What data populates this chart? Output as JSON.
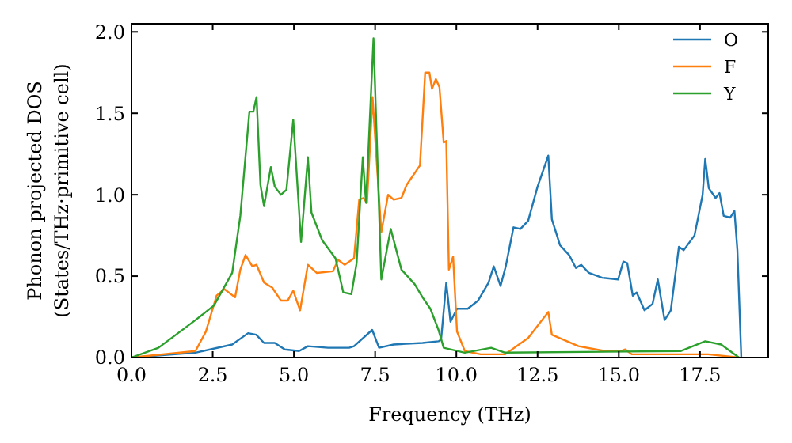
{
  "chart_data": {
    "type": "line",
    "xlabel": "Frequency (THz)",
    "ylabel": "Phonon projected DOS\n(States/THz·primitive cell)",
    "xlim": [
      0,
      19.6
    ],
    "ylim": [
      0,
      2.05
    ],
    "xticks": [
      {
        "value": 0,
        "label": "0.0"
      },
      {
        "value": 2.5,
        "label": "2.5"
      },
      {
        "value": 5,
        "label": "5.0"
      },
      {
        "value": 7.5,
        "label": "7.5"
      },
      {
        "value": 10,
        "label": "10.0"
      },
      {
        "value": 12.5,
        "label": "12.5"
      },
      {
        "value": 15,
        "label": "15.0"
      },
      {
        "value": 17.5,
        "label": "17.5"
      }
    ],
    "yticks": [
      {
        "value": 0,
        "label": "0.0"
      },
      {
        "value": 0.5,
        "label": "0.5"
      },
      {
        "value": 1,
        "label": "1.0"
      },
      {
        "value": 1.5,
        "label": "1.5"
      },
      {
        "value": 2,
        "label": "2.0"
      }
    ],
    "grid": false,
    "legend": "top right",
    "line_style": "solid",
    "marker": "none",
    "series": [
      {
        "name": "O",
        "color": "#1f77b4",
        "x": [
          0,
          1.97,
          3.1,
          3.59,
          3.84,
          4.08,
          4.41,
          4.72,
          5.16,
          5.43,
          6.05,
          6.7,
          6.85,
          7.41,
          7.62,
          8.07,
          8.96,
          9.45,
          9.53,
          9.69,
          9.82,
          10.02,
          10.35,
          10.67,
          10.99,
          11.15,
          11.36,
          11.52,
          11.76,
          11.97,
          12.21,
          12.5,
          12.83,
          12.94,
          13.19,
          13.47,
          13.68,
          13.84,
          14.08,
          14.49,
          14.98,
          15.14,
          15.26,
          15.43,
          15.55,
          15.79,
          16.04,
          16.2,
          16.41,
          16.6,
          16.85,
          17.0,
          17.33,
          17.58,
          17.66,
          17.77,
          17.98,
          18.1,
          18.23,
          18.43,
          18.56,
          18.65,
          18.77
        ],
        "values": [
          0,
          0.03,
          0.08,
          0.15,
          0.14,
          0.09,
          0.09,
          0.05,
          0.04,
          0.07,
          0.06,
          0.06,
          0.07,
          0.17,
          0.06,
          0.08,
          0.09,
          0.1,
          0.11,
          0.46,
          0.22,
          0.3,
          0.3,
          0.35,
          0.46,
          0.56,
          0.44,
          0.56,
          0.8,
          0.79,
          0.84,
          1.05,
          1.24,
          0.85,
          0.69,
          0.63,
          0.55,
          0.57,
          0.52,
          0.49,
          0.48,
          0.59,
          0.58,
          0.38,
          0.4,
          0.29,
          0.33,
          0.48,
          0.23,
          0.29,
          0.68,
          0.66,
          0.75,
          1.0,
          1.22,
          1.04,
          0.98,
          1.01,
          0.87,
          0.86,
          0.9,
          0.66,
          0
        ]
      },
      {
        "name": "F",
        "color": "#ff7f0e",
        "x": [
          0,
          1.97,
          2.29,
          2.62,
          2.86,
          3.19,
          3.35,
          3.51,
          3.72,
          3.85,
          4.08,
          4.33,
          4.6,
          4.81,
          4.98,
          5.19,
          5.43,
          5.7,
          6.2,
          6.36,
          6.56,
          6.85,
          7.01,
          7.14,
          7.25,
          7.42,
          7.69,
          7.9,
          8.07,
          8.31,
          8.47,
          8.88,
          9.04,
          9.17,
          9.25,
          9.37,
          9.48,
          9.61,
          9.69,
          9.77,
          9.9,
          10.02,
          10.26,
          10.75,
          11.5,
          12.21,
          12.83,
          12.94,
          13.76,
          14.57,
          15.06,
          15.2,
          15.4,
          17.75,
          18.7
        ],
        "values": [
          0,
          0.04,
          0.16,
          0.38,
          0.42,
          0.37,
          0.54,
          0.63,
          0.56,
          0.57,
          0.46,
          0.43,
          0.35,
          0.35,
          0.41,
          0.29,
          0.57,
          0.52,
          0.53,
          0.6,
          0.57,
          0.61,
          0.97,
          0.98,
          0.95,
          1.6,
          0.77,
          1.0,
          0.97,
          0.98,
          1.06,
          1.18,
          1.75,
          1.75,
          1.65,
          1.71,
          1.66,
          1.32,
          1.33,
          0.54,
          0.62,
          0.16,
          0.04,
          0.02,
          0.02,
          0.12,
          0.28,
          0.14,
          0.07,
          0.04,
          0.04,
          0.05,
          0.02,
          0.02,
          0
        ]
      },
      {
        "name": "Y",
        "color": "#2ca02c",
        "x": [
          0,
          0.83,
          1.97,
          2.54,
          3.1,
          3.35,
          3.63,
          3.75,
          3.85,
          3.97,
          4.08,
          4.29,
          4.41,
          4.6,
          4.77,
          4.98,
          5.22,
          5.43,
          5.54,
          5.87,
          6.28,
          6.52,
          6.77,
          6.93,
          7.12,
          7.22,
          7.45,
          7.69,
          7.98,
          8.31,
          8.72,
          8.96,
          9.2,
          9.45,
          9.61,
          10.26,
          11.07,
          11.5,
          16.9,
          17.66,
          18.15,
          18.7
        ],
        "values": [
          0,
          0.06,
          0.23,
          0.32,
          0.52,
          0.87,
          1.51,
          1.51,
          1.6,
          1.06,
          0.93,
          1.17,
          1.05,
          1.0,
          1.03,
          1.46,
          0.71,
          1.23,
          0.89,
          0.72,
          0.61,
          0.4,
          0.39,
          0.58,
          1.23,
          0.95,
          1.96,
          0.48,
          0.79,
          0.54,
          0.45,
          0.37,
          0.3,
          0.17,
          0.06,
          0.03,
          0.06,
          0.03,
          0.04,
          0.1,
          0.08,
          0
        ]
      }
    ]
  }
}
